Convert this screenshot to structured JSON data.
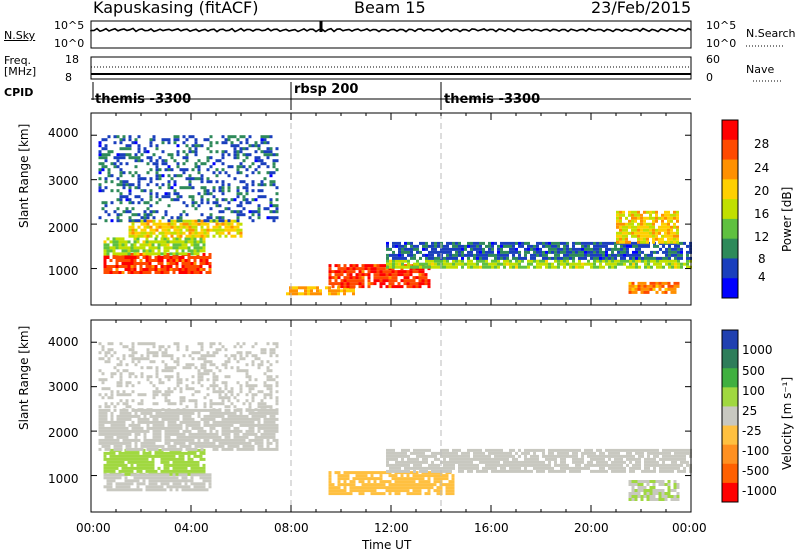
{
  "header": {
    "station": "Kapuskasing (fitACF)",
    "beam": "Beam 15",
    "date": "23/Feb/2015"
  },
  "summary_panels": {
    "nsky": {
      "label": "N.Sky",
      "ticks_left": [
        "10^5",
        "10^0"
      ],
      "ticks_right": [
        "10^5",
        "10^0"
      ],
      "right_label": "N.Search"
    },
    "freq": {
      "label_line1": "Freq.",
      "label_line2": "[MHz]",
      "ticks_left": [
        "18",
        "8"
      ],
      "ticks_right": [
        "60",
        "0"
      ],
      "right_label": "Nave"
    },
    "cpid": {
      "label": "CPID",
      "segments": [
        {
          "text": "themis -3300",
          "start_hour": 0
        },
        {
          "text": "rbsp 200",
          "start_hour": 8
        },
        {
          "text": "themis -3300",
          "start_hour": 14
        }
      ]
    }
  },
  "axes": {
    "xlabel": "Time UT",
    "xticks": [
      "00:00",
      "04:00",
      "08:00",
      "12:00",
      "16:00",
      "20:00",
      "00:00"
    ],
    "ylabel_top": "Slant Range [km]",
    "ylabel_bottom": "Slant Range [km]",
    "yticks": [
      "4000",
      "3000",
      "2000",
      "1000"
    ]
  },
  "colorbars": {
    "power": {
      "label": "Power [dB]",
      "ticks": [
        "28",
        "24",
        "20",
        "16",
        "12",
        "8",
        "4"
      ],
      "colors": [
        "#ff0000",
        "#ff4a00",
        "#ff9000",
        "#ffd000",
        "#c0e000",
        "#5fc040",
        "#2e8a5a",
        "#1a3fbd",
        "#0000ff"
      ]
    },
    "velocity": {
      "label": "Velocity [m s⁻¹]",
      "ticks": [
        "1000",
        "500",
        "100",
        "25",
        "-25",
        "-100",
        "-500",
        "-1000"
      ],
      "colors": [
        "#2040b0",
        "#2e7d5a",
        "#40b040",
        "#a0d840",
        "#c8c8c0",
        "#ffc040",
        "#ff9020",
        "#ff6000",
        "#ff0000"
      ]
    }
  },
  "chart_data": {
    "type": "heatmap",
    "title": "Kapuskasing (fitACF) Beam 15 23/Feb/2015",
    "xlabel": "Time UT",
    "ylabel": "Slant Range [km]",
    "x_unit": "hours UT",
    "xlim": [
      0,
      24
    ],
    "ylim": [
      180,
      4500
    ],
    "panels": [
      {
        "name": "Power [dB]",
        "clim": [
          0,
          30
        ],
        "regions": [
          {
            "t0": 0.5,
            "t1": 4.8,
            "r0": 900,
            "r1": 1350,
            "value": 26
          },
          {
            "t0": 0.5,
            "t1": 4.5,
            "r0": 1350,
            "r1": 1700,
            "value": 14
          },
          {
            "t0": 1.5,
            "t1": 6.0,
            "r0": 1700,
            "r1": 2100,
            "value": 18
          },
          {
            "t0": 0.3,
            "t1": 7.5,
            "r0": 2100,
            "r1": 4000,
            "value": 6
          },
          {
            "t0": 7.8,
            "t1": 10.5,
            "r0": 400,
            "r1": 600,
            "value": 20
          },
          {
            "t0": 9.5,
            "t1": 13.5,
            "r0": 600,
            "r1": 1100,
            "value": 26
          },
          {
            "t0": 11.8,
            "t1": 24.0,
            "r0": 1000,
            "r1": 1200,
            "value": 14
          },
          {
            "t0": 11.8,
            "t1": 24.0,
            "r0": 1200,
            "r1": 1600,
            "value": 6
          },
          {
            "t0": 21.0,
            "t1": 23.5,
            "r0": 1600,
            "r1": 2300,
            "value": 18
          },
          {
            "t0": 21.5,
            "t1": 23.5,
            "r0": 450,
            "r1": 700,
            "value": 22
          }
        ]
      },
      {
        "name": "Velocity [m s-1]",
        "clim": [
          -1000,
          1000
        ],
        "regions": [
          {
            "t0": 0.5,
            "t1": 4.5,
            "r0": 1050,
            "r1": 1600,
            "value": 300
          },
          {
            "t0": 0.5,
            "t1": 4.8,
            "r0": 700,
            "r1": 1050,
            "value": 80
          },
          {
            "t0": 0.3,
            "t1": 7.5,
            "r0": 1600,
            "r1": 2500,
            "value": 0
          },
          {
            "t0": 0.3,
            "t1": 7.5,
            "r0": 2500,
            "r1": 4000,
            "value": 0
          },
          {
            "t0": 9.5,
            "t1": 14.5,
            "r0": 600,
            "r1": 1100,
            "value": -300
          },
          {
            "t0": 11.8,
            "t1": 24.0,
            "r0": 1100,
            "r1": 1600,
            "value": 0
          },
          {
            "t0": 21.5,
            "t1": 23.5,
            "r0": 450,
            "r1": 900,
            "value": 100
          }
        ]
      }
    ]
  }
}
